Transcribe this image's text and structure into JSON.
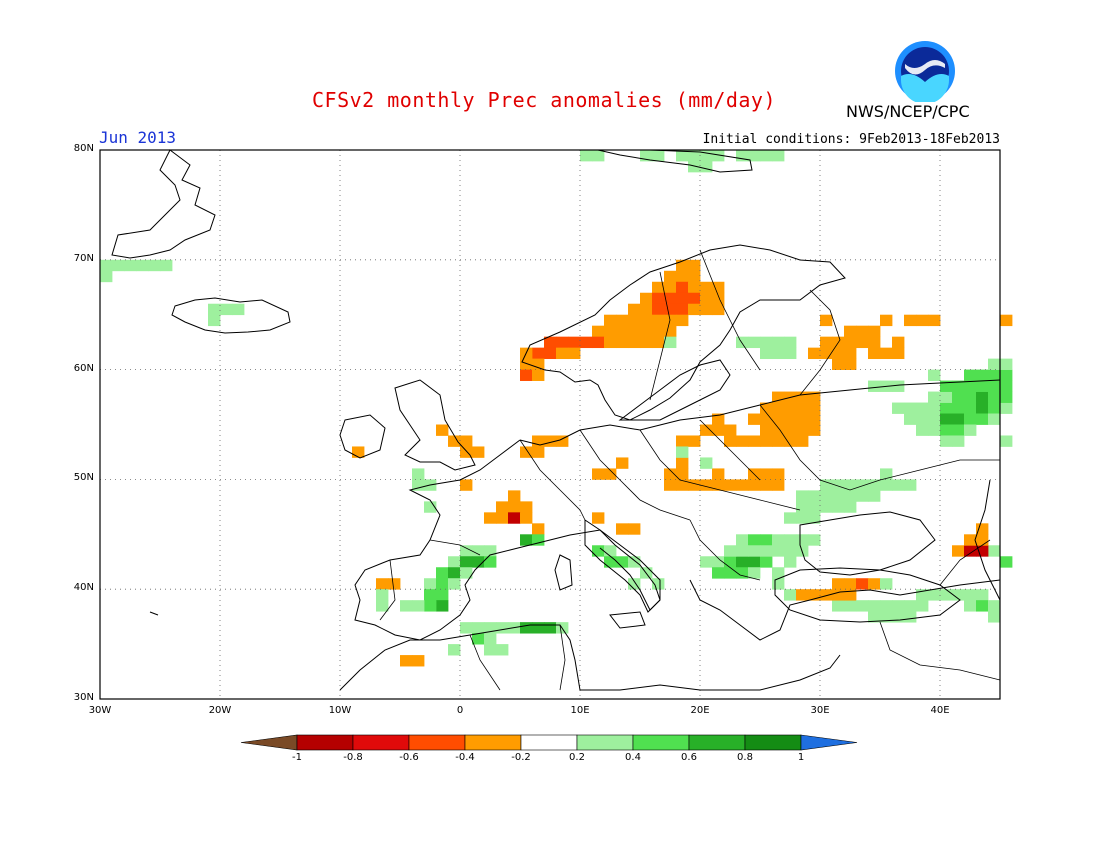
{
  "title": "CFSv2 monthly Prec anomalies (mm/day)",
  "month": "Jun 2013",
  "initial_conditions": "Initial conditions: 9Feb2013-18Feb2013",
  "agency": "NWS/NCEP/CPC",
  "logo_text": "NOAA",
  "latitude_labels": [
    "80N",
    "70N",
    "60N",
    "50N",
    "40N",
    "30N"
  ],
  "longitude_labels": [
    "30W",
    "20W",
    "10W",
    "0",
    "10E",
    "20E",
    "30E",
    "40E"
  ],
  "colorbar": {
    "labels": [
      "-1",
      "-0.8",
      "-0.6",
      "-0.4",
      "-0.2",
      "0.2",
      "0.4",
      "0.6",
      "0.8",
      "1"
    ],
    "colors": [
      "#7a4a26",
      "#b50000",
      "#e00a0a",
      "#ff4d00",
      "#ff9c00",
      "#ffffff",
      "#9ef09e",
      "#50e050",
      "#28b028",
      "#148c14",
      "#1f6fe0"
    ]
  },
  "map_extent": {
    "lon": [
      -30,
      45
    ],
    "lat": [
      30,
      80
    ]
  },
  "anomaly_palette": {
    "o": "#ff9c00",
    "r": "#ff4d00",
    "R": "#c20000",
    "l": "#9ef09e",
    "g": "#50e050",
    "G": "#28b028"
  },
  "anomaly_cells": [
    [
      -30,
      69,
      "l"
    ],
    [
      -29,
      69,
      "l"
    ],
    [
      -28,
      69,
      "l"
    ],
    [
      -27,
      69,
      "l"
    ],
    [
      -26,
      69,
      "l"
    ],
    [
      -25,
      69,
      "l"
    ],
    [
      -30,
      68,
      "l"
    ],
    [
      -21,
      65,
      "l"
    ],
    [
      -20,
      65,
      "l"
    ],
    [
      -19,
      65,
      "l"
    ],
    [
      -21,
      64,
      "l"
    ],
    [
      -9,
      52,
      "o"
    ],
    [
      -2,
      54,
      "o"
    ],
    [
      -1,
      53,
      "o"
    ],
    [
      0,
      53,
      "o"
    ],
    [
      0,
      52,
      "o"
    ],
    [
      1,
      52,
      "o"
    ],
    [
      5,
      52,
      "o"
    ],
    [
      6,
      52,
      "o"
    ],
    [
      7,
      53,
      "o"
    ],
    [
      8,
      53,
      "o"
    ],
    [
      6,
      53,
      "o"
    ],
    [
      11,
      50,
      "o"
    ],
    [
      12,
      50,
      "o"
    ],
    [
      13,
      51,
      "o"
    ],
    [
      -4,
      50,
      "l"
    ],
    [
      -4,
      49,
      "l"
    ],
    [
      -3,
      49,
      "l"
    ],
    [
      -3,
      47,
      "l"
    ],
    [
      0,
      49,
      "o"
    ],
    [
      4,
      48,
      "o"
    ],
    [
      3,
      47,
      "o"
    ],
    [
      4,
      47,
      "o"
    ],
    [
      5,
      47,
      "o"
    ],
    [
      2,
      46,
      "o"
    ],
    [
      3,
      46,
      "o"
    ],
    [
      4,
      46,
      "R"
    ],
    [
      5,
      46,
      "o"
    ],
    [
      6,
      45,
      "o"
    ],
    [
      11,
      46,
      "o"
    ],
    [
      13,
      45,
      "o"
    ],
    [
      14,
      45,
      "o"
    ],
    [
      5,
      44,
      "G"
    ],
    [
      6,
      44,
      "g"
    ],
    [
      0,
      43,
      "l"
    ],
    [
      1,
      43,
      "l"
    ],
    [
      2,
      43,
      "l"
    ],
    [
      -1,
      42,
      "l"
    ],
    [
      0,
      42,
      "G"
    ],
    [
      1,
      42,
      "G"
    ],
    [
      2,
      42,
      "g"
    ],
    [
      -2,
      41,
      "g"
    ],
    [
      -1,
      41,
      "G"
    ],
    [
      0,
      41,
      "l"
    ],
    [
      -3,
      40,
      "l"
    ],
    [
      -2,
      40,
      "g"
    ],
    [
      -1,
      40,
      "l"
    ],
    [
      -3,
      39,
      "g"
    ],
    [
      -2,
      39,
      "g"
    ],
    [
      -2,
      38,
      "G"
    ],
    [
      -3,
      38,
      "g"
    ],
    [
      -4,
      38,
      "l"
    ],
    [
      -5,
      38,
      "l"
    ],
    [
      -7,
      40,
      "o"
    ],
    [
      -6,
      40,
      "o"
    ],
    [
      -7,
      39,
      "l"
    ],
    [
      -7,
      38,
      "l"
    ],
    [
      0,
      36,
      "l"
    ],
    [
      1,
      36,
      "l"
    ],
    [
      2,
      36,
      "l"
    ],
    [
      3,
      36,
      "l"
    ],
    [
      4,
      36,
      "l"
    ],
    [
      5,
      36,
      "G"
    ],
    [
      6,
      36,
      "G"
    ],
    [
      7,
      36,
      "G"
    ],
    [
      8,
      36,
      "l"
    ],
    [
      1,
      35,
      "g"
    ],
    [
      2,
      35,
      "l"
    ],
    [
      -1,
      34,
      "l"
    ],
    [
      2,
      34,
      "l"
    ],
    [
      3,
      34,
      "l"
    ],
    [
      -5,
      33,
      "o"
    ],
    [
      -4,
      33,
      "o"
    ],
    [
      11,
      43,
      "g"
    ],
    [
      12,
      43,
      "l"
    ],
    [
      12,
      42,
      "g"
    ],
    [
      13,
      42,
      "g"
    ],
    [
      14,
      42,
      "l"
    ],
    [
      15,
      41,
      "l"
    ],
    [
      14,
      40,
      "l"
    ],
    [
      16,
      40,
      "l"
    ],
    [
      20,
      42,
      "l"
    ],
    [
      21,
      42,
      "l"
    ],
    [
      22,
      42,
      "g"
    ],
    [
      23,
      42,
      "G"
    ],
    [
      24,
      42,
      "G"
    ],
    [
      25,
      42,
      "g"
    ],
    [
      21,
      41,
      "g"
    ],
    [
      22,
      41,
      "g"
    ],
    [
      23,
      41,
      "g"
    ],
    [
      24,
      41,
      "l"
    ],
    [
      26,
      41,
      "l"
    ],
    [
      27,
      42,
      "l"
    ],
    [
      23,
      44,
      "l"
    ],
    [
      24,
      44,
      "g"
    ],
    [
      25,
      44,
      "g"
    ],
    [
      26,
      44,
      "l"
    ],
    [
      27,
      44,
      "l"
    ],
    [
      28,
      44,
      "l"
    ],
    [
      29,
      44,
      "l"
    ],
    [
      22,
      43,
      "l"
    ],
    [
      23,
      43,
      "l"
    ],
    [
      24,
      43,
      "l"
    ],
    [
      25,
      43,
      "l"
    ],
    [
      26,
      43,
      "l"
    ],
    [
      27,
      43,
      "l"
    ],
    [
      28,
      43,
      "l"
    ],
    [
      26,
      40,
      "l"
    ],
    [
      27,
      39,
      "l"
    ],
    [
      31,
      38,
      "l"
    ],
    [
      32,
      38,
      "l"
    ],
    [
      31,
      40,
      "o"
    ],
    [
      32,
      40,
      "o"
    ],
    [
      33,
      40,
      "r"
    ],
    [
      34,
      40,
      "o"
    ],
    [
      35,
      40,
      "l"
    ],
    [
      28,
      39,
      "o"
    ],
    [
      29,
      39,
      "o"
    ],
    [
      30,
      39,
      "o"
    ],
    [
      31,
      39,
      "o"
    ],
    [
      32,
      39,
      "o"
    ],
    [
      33,
      38,
      "l"
    ],
    [
      34,
      38,
      "l"
    ],
    [
      35,
      38,
      "l"
    ],
    [
      36,
      38,
      "l"
    ],
    [
      37,
      38,
      "l"
    ],
    [
      38,
      38,
      "l"
    ],
    [
      34,
      37,
      "l"
    ],
    [
      35,
      37,
      "l"
    ],
    [
      36,
      37,
      "l"
    ],
    [
      37,
      37,
      "l"
    ],
    [
      38,
      39,
      "l"
    ],
    [
      39,
      39,
      "l"
    ],
    [
      40,
      39,
      "l"
    ],
    [
      41,
      39,
      "l"
    ],
    [
      42,
      39,
      "l"
    ],
    [
      43,
      39,
      "l"
    ],
    [
      42,
      38,
      "l"
    ],
    [
      43,
      38,
      "g"
    ],
    [
      44,
      38,
      "l"
    ],
    [
      44,
      37,
      "l"
    ],
    [
      44,
      43,
      "l"
    ],
    [
      45,
      42,
      "g"
    ],
    [
      41,
      43,
      "o"
    ],
    [
      42,
      43,
      "R"
    ],
    [
      43,
      43,
      "R"
    ],
    [
      42,
      44,
      "o"
    ],
    [
      43,
      44,
      "o"
    ],
    [
      43,
      45,
      "o"
    ],
    [
      30,
      49,
      "l"
    ],
    [
      31,
      49,
      "l"
    ],
    [
      32,
      49,
      "l"
    ],
    [
      33,
      49,
      "l"
    ],
    [
      34,
      49,
      "l"
    ],
    [
      35,
      49,
      "l"
    ],
    [
      36,
      49,
      "l"
    ],
    [
      37,
      49,
      "l"
    ],
    [
      28,
      48,
      "l"
    ],
    [
      29,
      48,
      "l"
    ],
    [
      30,
      48,
      "l"
    ],
    [
      31,
      48,
      "l"
    ],
    [
      32,
      48,
      "l"
    ],
    [
      33,
      48,
      "l"
    ],
    [
      34,
      48,
      "l"
    ],
    [
      28,
      47,
      "l"
    ],
    [
      29,
      47,
      "l"
    ],
    [
      30,
      47,
      "l"
    ],
    [
      31,
      47,
      "l"
    ],
    [
      32,
      47,
      "l"
    ],
    [
      27,
      46,
      "l"
    ],
    [
      28,
      46,
      "l"
    ],
    [
      29,
      46,
      "l"
    ],
    [
      35,
      50,
      "l"
    ],
    [
      18,
      51,
      "o"
    ],
    [
      17,
      50,
      "o"
    ],
    [
      18,
      50,
      "o"
    ],
    [
      17,
      49,
      "o"
    ],
    [
      18,
      49,
      "o"
    ],
    [
      19,
      49,
      "o"
    ],
    [
      20,
      49,
      "o"
    ],
    [
      21,
      49,
      "o"
    ],
    [
      22,
      49,
      "o"
    ],
    [
      23,
      49,
      "o"
    ],
    [
      24,
      49,
      "o"
    ],
    [
      25,
      49,
      "o"
    ],
    [
      26,
      49,
      "o"
    ],
    [
      24,
      50,
      "o"
    ],
    [
      25,
      50,
      "o"
    ],
    [
      26,
      50,
      "o"
    ],
    [
      21,
      50,
      "o"
    ],
    [
      20,
      51,
      "l"
    ],
    [
      19,
      53,
      "o"
    ],
    [
      18,
      53,
      "o"
    ],
    [
      21,
      54,
      "o"
    ],
    [
      22,
      54,
      "o"
    ],
    [
      22,
      53,
      "o"
    ],
    [
      23,
      53,
      "o"
    ],
    [
      24,
      53,
      "o"
    ],
    [
      25,
      53,
      "o"
    ],
    [
      26,
      53,
      "o"
    ],
    [
      27,
      53,
      "o"
    ],
    [
      28,
      53,
      "o"
    ],
    [
      25,
      54,
      "o"
    ],
    [
      26,
      54,
      "o"
    ],
    [
      27,
      54,
      "o"
    ],
    [
      28,
      54,
      "o"
    ],
    [
      29,
      54,
      "o"
    ],
    [
      26,
      55,
      "o"
    ],
    [
      27,
      55,
      "o"
    ],
    [
      28,
      55,
      "o"
    ],
    [
      29,
      55,
      "o"
    ],
    [
      25,
      55,
      "o"
    ],
    [
      26,
      56,
      "o"
    ],
    [
      27,
      56,
      "o"
    ],
    [
      28,
      56,
      "o"
    ],
    [
      29,
      56,
      "o"
    ],
    [
      27,
      57,
      "o"
    ],
    [
      28,
      57,
      "o"
    ],
    [
      29,
      57,
      "o"
    ],
    [
      26,
      57,
      "o"
    ],
    [
      25,
      56,
      "o"
    ],
    [
      24,
      55,
      "o"
    ],
    [
      20,
      54,
      "o"
    ],
    [
      21,
      55,
      "o"
    ],
    [
      18,
      52,
      "l"
    ],
    [
      36,
      56,
      "l"
    ],
    [
      37,
      56,
      "l"
    ],
    [
      38,
      56,
      "l"
    ],
    [
      39,
      56,
      "l"
    ],
    [
      40,
      56,
      "g"
    ],
    [
      41,
      56,
      "g"
    ],
    [
      42,
      56,
      "g"
    ],
    [
      43,
      56,
      "G"
    ],
    [
      44,
      56,
      "g"
    ],
    [
      45,
      56,
      "l"
    ],
    [
      37,
      55,
      "l"
    ],
    [
      38,
      55,
      "l"
    ],
    [
      39,
      55,
      "l"
    ],
    [
      40,
      55,
      "G"
    ],
    [
      41,
      55,
      "G"
    ],
    [
      42,
      55,
      "g"
    ],
    [
      43,
      55,
      "g"
    ],
    [
      44,
      55,
      "l"
    ],
    [
      38,
      54,
      "l"
    ],
    [
      39,
      54,
      "l"
    ],
    [
      40,
      54,
      "g"
    ],
    [
      41,
      54,
      "g"
    ],
    [
      42,
      54,
      "l"
    ],
    [
      40,
      53,
      "l"
    ],
    [
      41,
      53,
      "l"
    ],
    [
      45,
      53,
      "l"
    ],
    [
      39,
      57,
      "l"
    ],
    [
      40,
      57,
      "l"
    ],
    [
      41,
      57,
      "g"
    ],
    [
      42,
      57,
      "g"
    ],
    [
      43,
      57,
      "G"
    ],
    [
      44,
      57,
      "g"
    ],
    [
      45,
      57,
      "g"
    ],
    [
      40,
      58,
      "g"
    ],
    [
      41,
      58,
      "g"
    ],
    [
      42,
      58,
      "g"
    ],
    [
      43,
      58,
      "g"
    ],
    [
      44,
      58,
      "g"
    ],
    [
      45,
      58,
      "g"
    ],
    [
      42,
      59,
      "g"
    ],
    [
      43,
      59,
      "g"
    ],
    [
      44,
      59,
      "g"
    ],
    [
      45,
      59,
      "g"
    ],
    [
      44,
      60,
      "l"
    ],
    [
      45,
      60,
      "l"
    ],
    [
      34,
      58,
      "l"
    ],
    [
      35,
      58,
      "l"
    ],
    [
      36,
      58,
      "l"
    ],
    [
      39,
      59,
      "l"
    ],
    [
      32,
      63,
      "o"
    ],
    [
      33,
      63,
      "o"
    ],
    [
      34,
      63,
      "o"
    ],
    [
      30,
      62,
      "o"
    ],
    [
      31,
      62,
      "o"
    ],
    [
      32,
      62,
      "o"
    ],
    [
      33,
      62,
      "o"
    ],
    [
      34,
      62,
      "o"
    ],
    [
      30,
      61,
      "o"
    ],
    [
      31,
      61,
      "o"
    ],
    [
      32,
      61,
      "o"
    ],
    [
      35,
      61,
      "o"
    ],
    [
      36,
      61,
      "o"
    ],
    [
      29,
      61,
      "o"
    ],
    [
      34,
      61,
      "o"
    ],
    [
      31,
      60,
      "o"
    ],
    [
      32,
      60,
      "o"
    ],
    [
      30,
      64,
      "o"
    ],
    [
      35,
      64,
      "o"
    ],
    [
      37,
      64,
      "o"
    ],
    [
      38,
      64,
      "o"
    ],
    [
      39,
      64,
      "o"
    ],
    [
      45,
      64,
      "o"
    ],
    [
      36,
      62,
      "o"
    ],
    [
      23,
      62,
      "l"
    ],
    [
      24,
      62,
      "l"
    ],
    [
      25,
      62,
      "l"
    ],
    [
      26,
      62,
      "l"
    ],
    [
      27,
      62,
      "l"
    ],
    [
      25,
      61,
      "l"
    ],
    [
      26,
      61,
      "l"
    ],
    [
      27,
      61,
      "l"
    ],
    [
      18,
      69,
      "o"
    ],
    [
      19,
      69,
      "o"
    ],
    [
      17,
      68,
      "o"
    ],
    [
      18,
      68,
      "o"
    ],
    [
      19,
      68,
      "o"
    ],
    [
      16,
      67,
      "o"
    ],
    [
      17,
      67,
      "o"
    ],
    [
      18,
      67,
      "r"
    ],
    [
      19,
      67,
      "o"
    ],
    [
      20,
      67,
      "o"
    ],
    [
      21,
      67,
      "o"
    ],
    [
      15,
      66,
      "o"
    ],
    [
      16,
      66,
      "r"
    ],
    [
      17,
      66,
      "r"
    ],
    [
      18,
      66,
      "r"
    ],
    [
      19,
      66,
      "r"
    ],
    [
      20,
      66,
      "o"
    ],
    [
      21,
      66,
      "o"
    ],
    [
      14,
      65,
      "o"
    ],
    [
      15,
      65,
      "o"
    ],
    [
      16,
      65,
      "r"
    ],
    [
      17,
      65,
      "r"
    ],
    [
      18,
      65,
      "r"
    ],
    [
      19,
      65,
      "o"
    ],
    [
      20,
      65,
      "o"
    ],
    [
      21,
      65,
      "o"
    ],
    [
      12,
      64,
      "o"
    ],
    [
      13,
      64,
      "o"
    ],
    [
      14,
      64,
      "o"
    ],
    [
      15,
      64,
      "o"
    ],
    [
      16,
      64,
      "o"
    ],
    [
      17,
      64,
      "o"
    ],
    [
      18,
      64,
      "o"
    ],
    [
      11,
      63,
      "o"
    ],
    [
      12,
      63,
      "o"
    ],
    [
      13,
      63,
      "o"
    ],
    [
      14,
      63,
      "o"
    ],
    [
      15,
      63,
      "o"
    ],
    [
      16,
      63,
      "o"
    ],
    [
      17,
      63,
      "o"
    ],
    [
      7,
      62,
      "r"
    ],
    [
      8,
      62,
      "r"
    ],
    [
      9,
      62,
      "r"
    ],
    [
      10,
      62,
      "r"
    ],
    [
      11,
      62,
      "r"
    ],
    [
      12,
      62,
      "o"
    ],
    [
      13,
      62,
      "o"
    ],
    [
      14,
      62,
      "o"
    ],
    [
      15,
      62,
      "o"
    ],
    [
      16,
      62,
      "o"
    ],
    [
      6,
      61,
      "r"
    ],
    [
      7,
      61,
      "r"
    ],
    [
      8,
      61,
      "o"
    ],
    [
      9,
      61,
      "o"
    ],
    [
      5,
      61,
      "o"
    ],
    [
      5,
      60,
      "o"
    ],
    [
      6,
      60,
      "o"
    ],
    [
      5,
      59,
      "r"
    ],
    [
      6,
      59,
      "o"
    ],
    [
      17,
      62,
      "l"
    ],
    [
      15,
      79,
      "l"
    ],
    [
      16,
      79,
      "l"
    ],
    [
      18,
      79,
      "l"
    ],
    [
      19,
      79,
      "l"
    ],
    [
      20,
      79,
      "l"
    ],
    [
      21,
      79,
      "l"
    ],
    [
      23,
      79,
      "l"
    ],
    [
      24,
      79,
      "l"
    ],
    [
      25,
      79,
      "l"
    ],
    [
      26,
      79,
      "l"
    ],
    [
      19,
      78,
      "l"
    ],
    [
      20,
      78,
      "l"
    ],
    [
      10,
      79,
      "l"
    ],
    [
      11,
      79,
      "l"
    ]
  ]
}
